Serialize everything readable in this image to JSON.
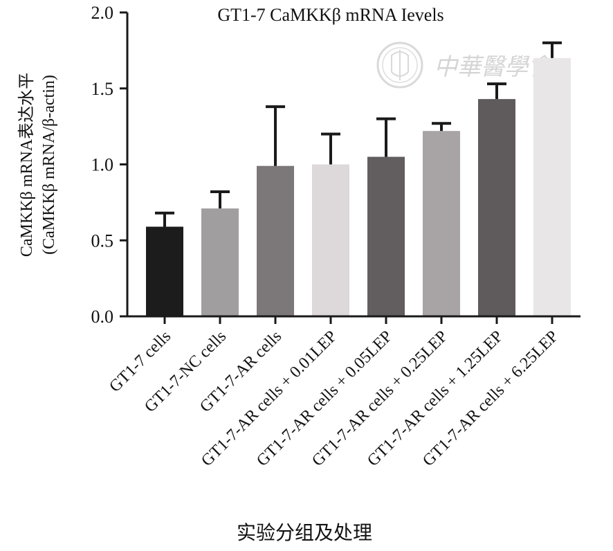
{
  "chart_data": {
    "type": "bar",
    "title": "GT1-7 CaMKKβ mRNA Ievels",
    "ylabel_line1": "CaMKKβ mRNA表达水平",
    "ylabel_line2": "(CaMKKβ mRNA/β-actin)",
    "xlabel": "实验分组及处理",
    "ylim": [
      0,
      2.0
    ],
    "yticks": [
      0.0,
      0.5,
      1.0,
      1.5,
      2.0
    ],
    "ytick_labels": [
      "0.0",
      "0.5",
      "1.0",
      "1.5",
      "2.0"
    ],
    "categories": [
      "GT1-7 cells",
      "GT1-7-NC cells",
      "GT1-7-AR cells",
      "GT1-7-AR cells + 0.01LEP",
      "GT1-7-AR cells + 0.05LEP",
      "GT1-7-AR cells + 0.25LEP",
      "GT1-7-AR cells + 1.25LEP",
      "GT1-7-AR cells + 6.25LEP"
    ],
    "values": [
      0.59,
      0.71,
      0.99,
      1.0,
      1.05,
      1.22,
      1.43,
      1.7
    ],
    "errors": [
      0.09,
      0.11,
      0.39,
      0.2,
      0.25,
      0.05,
      0.1,
      0.1
    ],
    "bar_colors": [
      "#1c1c1c",
      "#a19e9f",
      "#7c7778",
      "#ddd9da",
      "#625d5e",
      "#a8a4a5",
      "#5f5a5b",
      "#e8e6e6"
    ],
    "grid": false
  },
  "watermark": {
    "text": "中華醫學會",
    "emblem": "cma-emblem-icon"
  }
}
